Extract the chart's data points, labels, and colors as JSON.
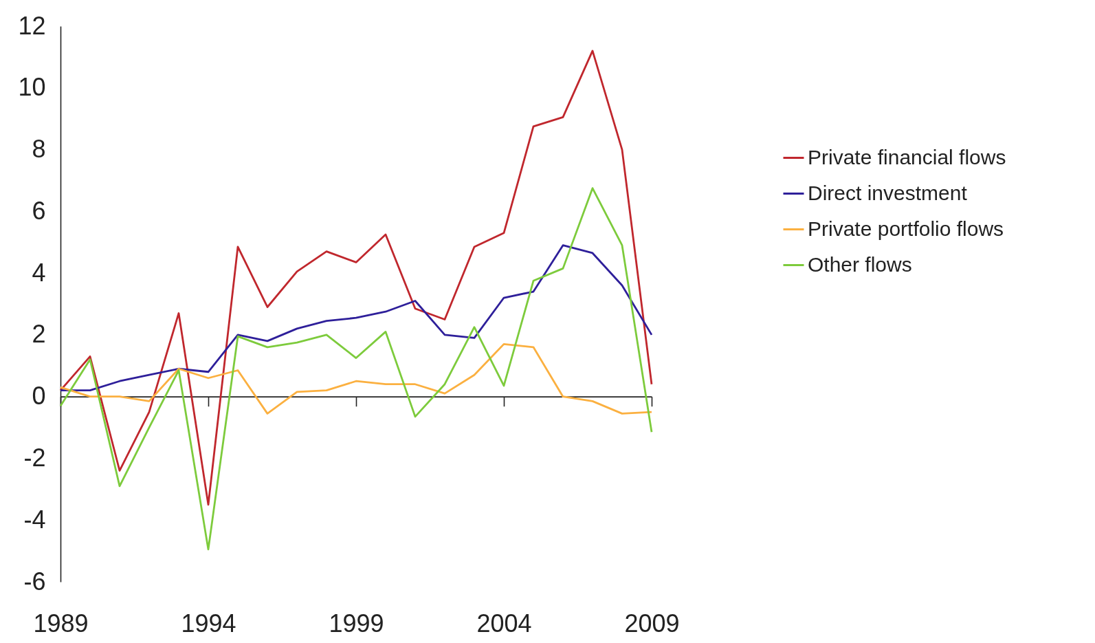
{
  "chart_data": {
    "type": "line",
    "x": [
      1989,
      1990,
      1991,
      1992,
      1993,
      1994,
      1995,
      1996,
      1997,
      1998,
      1999,
      2000,
      2001,
      2002,
      2003,
      2004,
      2005,
      2006,
      2007,
      2008,
      2009
    ],
    "series": [
      {
        "name": "Private financial flows",
        "color": "#c0272d",
        "values": [
          0.2,
          1.3,
          -2.4,
          -0.5,
          2.7,
          -3.5,
          4.85,
          2.9,
          4.05,
          4.7,
          4.35,
          5.25,
          2.85,
          2.5,
          4.85,
          5.3,
          8.75,
          9.05,
          11.2,
          8.0,
          0.4
        ]
      },
      {
        "name": "Direct investment",
        "color": "#2e1f9a",
        "values": [
          0.2,
          0.2,
          0.5,
          0.7,
          0.9,
          0.8,
          2.0,
          1.8,
          2.2,
          2.45,
          2.55,
          2.75,
          3.1,
          2.0,
          1.9,
          3.2,
          3.4,
          4.9,
          4.65,
          3.6,
          2.0
        ]
      },
      {
        "name": "Private portfolio flows",
        "color": "#fbb040",
        "values": [
          0.3,
          0,
          0,
          -0.15,
          0.9,
          0.6,
          0.85,
          -0.55,
          0.15,
          0.2,
          0.5,
          0.4,
          0.4,
          0.1,
          0.7,
          1.7,
          1.6,
          0,
          -0.15,
          -0.55,
          -0.5
        ]
      },
      {
        "name": "Other flows",
        "color": "#7dcb3c",
        "values": [
          -0.3,
          1.2,
          -2.9,
          -1.0,
          0.85,
          -4.95,
          1.95,
          1.6,
          1.75,
          2.0,
          1.25,
          2.1,
          -0.65,
          0.4,
          2.25,
          0.35,
          3.75,
          4.15,
          6.75,
          4.9,
          -1.15
        ]
      }
    ],
    "xlim": [
      1989,
      2009
    ],
    "xticks": [
      1989,
      1994,
      1999,
      2004,
      2009
    ],
    "ylim": [
      -6,
      12
    ],
    "yticks": [
      -6,
      -4,
      -2,
      0,
      2,
      4,
      6,
      8,
      10,
      12
    ],
    "legend": "right"
  }
}
